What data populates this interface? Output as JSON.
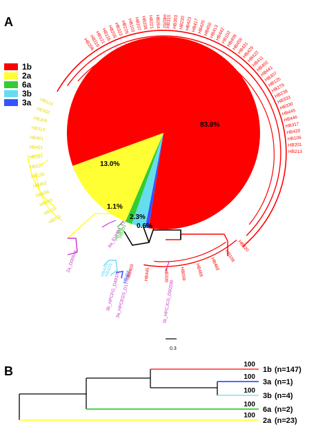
{
  "panels": {
    "a": "A",
    "b": "B"
  },
  "colors": {
    "1b": "#ff0000",
    "2a": "#ffff33",
    "6a": "#33cc33",
    "3b": "#66ddee",
    "3a": "#3355ff",
    "ref": "#cc33cc",
    "backbone": "#000000"
  },
  "legend": [
    {
      "label": "1b",
      "color": "#ff0000"
    },
    {
      "label": "2a",
      "color": "#ffff33"
    },
    {
      "label": "6a",
      "color": "#33cc33"
    },
    {
      "label": "3b",
      "color": "#66ddee"
    },
    {
      "label": "3a",
      "color": "#3355ff"
    }
  ],
  "pie": [
    {
      "genotype": "1b",
      "label": "83.0%",
      "value": 83.0,
      "color": "#ff0000"
    },
    {
      "genotype": "2a",
      "label": "13.0%",
      "value": 13.0,
      "color": "#ffff33"
    },
    {
      "genotype": "6a",
      "label": "1.1%",
      "value": 1.1,
      "color": "#33cc33"
    },
    {
      "genotype": "3b",
      "label": "2.3%",
      "value": 2.3,
      "color": "#66ddee"
    },
    {
      "genotype": "3a",
      "label": "0.6%",
      "value": 0.6,
      "color": "#3355ff"
    }
  ],
  "tree_a": {
    "visible_leaves_1b": [
      "HB206",
      "HB118",
      "HB121",
      "HB116",
      "HB205",
      "HB323",
      "HB226",
      "HB103",
      "HB107",
      "HB208",
      "HB221",
      "HB264",
      "HB262",
      "HB315",
      "HB303",
      "HB230",
      "HB423",
      "HB417",
      "HB420",
      "HB450",
      "HB413",
      "HB442",
      "HB102",
      "HB408",
      "HB459",
      "HB431",
      "HB429",
      "HB422",
      "HB411",
      "HB402",
      "HB441",
      "HB307",
      "HB125",
      "HB279",
      "HB238",
      "HB333",
      "HB330",
      "HB445",
      "HB446",
      "HB317",
      "HB420",
      "HB106",
      "HB201",
      "HB213",
      "HB420",
      "HB108",
      "HB468",
      "HB469",
      "HB099",
      "HB309",
      "HB445",
      "HB403"
    ],
    "visible_leaves_2a": [
      "HB311",
      "HB115",
      "HB410",
      "HB456",
      "HB452",
      "HB120",
      "HB227",
      "HB207",
      "HB401",
      "HB401",
      "HB313",
      "HB209",
      "HB302",
      "HB124"
    ],
    "references": [
      "1b_HPCJCG_D00290",
      "2a_D00944",
      "6a_EUH82_Y12083",
      "3b_HPCFG_D49374",
      "3a_HPCEGS_D17763"
    ],
    "other_leaves": [
      "HB403",
      "HB443",
      "HB405",
      "HB455",
      "HB303"
    ],
    "scale_label": "0.3"
  },
  "tree_b": {
    "leaves": [
      {
        "genotype": "1b",
        "count": "(n=147)",
        "bootstrap": "100",
        "color": "#ff0000"
      },
      {
        "genotype": "3a",
        "count": "(n=1)",
        "bootstrap": "100",
        "color": "#3355ff"
      },
      {
        "genotype": "3b",
        "count": "(n=4)",
        "bootstrap": "100",
        "color": "#66ddee"
      },
      {
        "genotype": "6a",
        "count": "(n=2)",
        "bootstrap": "100",
        "color": "#33cc33"
      },
      {
        "genotype": "2a",
        "count": "(n=23)",
        "bootstrap": "100",
        "color": "#ffff33"
      }
    ]
  }
}
